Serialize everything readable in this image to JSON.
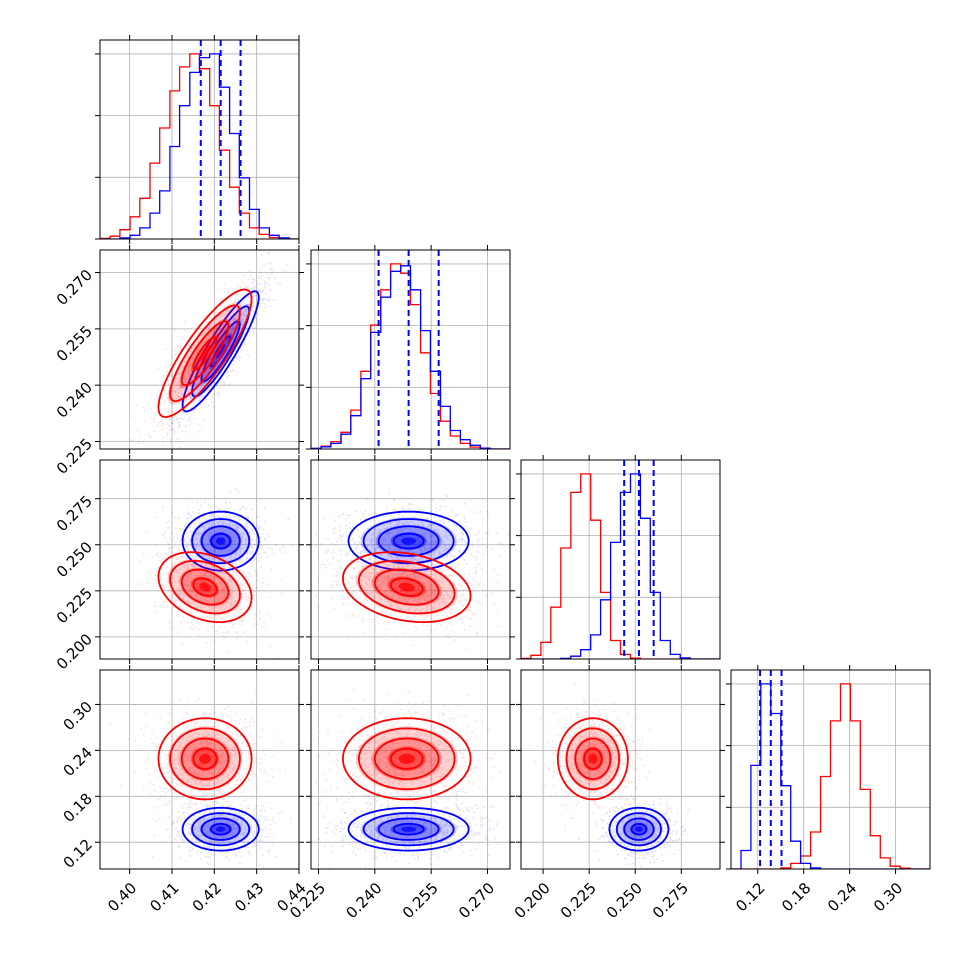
{
  "chart_data": {
    "type": "corner",
    "grid": true,
    "params": [
      {
        "index": 0,
        "range": [
          0.393,
          0.44
        ],
        "ticks": [
          "0.40",
          "0.41",
          "0.42",
          "0.43",
          "0.44"
        ],
        "label": ""
      },
      {
        "index": 1,
        "range": [
          0.223,
          0.276
        ],
        "ticks": [
          "0.225",
          "0.240",
          "0.255",
          "0.270"
        ],
        "label": ""
      },
      {
        "index": 2,
        "range": [
          0.188,
          0.296
        ],
        "ticks": [
          "0.200",
          "0.225",
          "0.250",
          "0.275"
        ],
        "label": ""
      },
      {
        "index": 3,
        "range": [
          0.085,
          0.345
        ],
        "ticks": [
          "0.12",
          "0.18",
          "0.24",
          "0.30"
        ],
        "label": ""
      }
    ],
    "series": [
      {
        "color": "#ff0000",
        "mean": [
          0.4178,
          0.2485,
          0.227,
          0.229
        ],
        "sd": [
          0.0055,
          0.0085,
          0.0095,
          0.0265
        ],
        "corr": {
          "0-1": 0.85,
          "0-2": -0.3,
          "1-2": -0.25
        }
      },
      {
        "color": "#0000ff",
        "mean": [
          0.4215,
          0.249,
          0.252,
          0.137
        ],
        "sd": [
          0.0045,
          0.008,
          0.008,
          0.014
        ],
        "corr": {
          "0-1": 0.9,
          "0-2": 0.0
        }
      }
    ],
    "quantile_lines": {
      "color": "#0000ff",
      "style": "dashed",
      "values": [
        [
          0.4168,
          0.4215,
          0.4262
        ],
        [
          0.241,
          0.249,
          0.257
        ],
        [
          0.244,
          0.252,
          0.26
        ],
        [
          0.123,
          0.137,
          0.151
        ]
      ]
    },
    "histograms": [
      {
        "param": 0,
        "bins": [
          0.393,
          0.3954,
          0.3977,
          0.4001,
          0.4024,
          0.4048,
          0.4071,
          0.4095,
          0.4118,
          0.4142,
          0.4165,
          0.4189,
          0.4212,
          0.4236,
          0.4259,
          0.4283,
          0.4306,
          0.433,
          0.4353,
          0.4377,
          0.44
        ],
        "red": [
          0.3,
          1.5,
          5,
          12,
          22,
          41,
          60,
          80,
          93,
          100,
          92,
          72,
          48,
          28,
          14,
          6,
          2.5,
          0.8,
          0.3,
          0
        ],
        "blue": [
          0,
          0,
          0.6,
          2,
          6,
          14,
          26,
          50,
          72,
          90,
          98,
          100,
          82,
          57,
          33,
          16,
          6,
          2,
          0.6,
          0
        ]
      },
      {
        "param": 1,
        "bins": [
          0.223,
          0.2257,
          0.2283,
          0.231,
          0.2336,
          0.2363,
          0.2389,
          0.2416,
          0.2442,
          0.2469,
          0.2495,
          0.2522,
          0.2548,
          0.2575,
          0.2601,
          0.2628,
          0.2654,
          0.2681,
          0.2707,
          0.2734,
          0.276
        ],
        "red": [
          0.3,
          1.5,
          4,
          9,
          21,
          42,
          67,
          86,
          100,
          95,
          78,
          52,
          30,
          15,
          7,
          3,
          1,
          0.3,
          0,
          0
        ],
        "blue": [
          0.3,
          1.2,
          3,
          8,
          18,
          38,
          63,
          82,
          96,
          99,
          86,
          64,
          42,
          23,
          10,
          5,
          2,
          0.5,
          0,
          0
        ]
      },
      {
        "param": 2,
        "bins": [
          0.188,
          0.1934,
          0.1988,
          0.2042,
          0.2096,
          0.215,
          0.2204,
          0.2258,
          0.2312,
          0.2366,
          0.242,
          0.2474,
          0.2528,
          0.2582,
          0.2636,
          0.269,
          0.2744,
          0.2798,
          0.2852,
          0.2906,
          0.296
        ],
        "red": [
          0.3,
          2,
          9,
          28,
          60,
          90,
          100,
          75,
          36,
          10,
          2.5,
          0.5,
          0,
          0,
          0,
          0,
          0,
          0,
          0,
          0
        ],
        "blue": [
          0,
          0,
          0,
          0,
          0.3,
          1.5,
          5,
          13,
          32,
          63,
          90,
          100,
          76,
          36,
          10,
          2.5,
          0.6,
          0,
          0,
          0
        ]
      },
      {
        "param": 3,
        "bins": [
          0.085,
          0.098,
          0.111,
          0.124,
          0.137,
          0.15,
          0.163,
          0.176,
          0.189,
          0.202,
          0.215,
          0.228,
          0.241,
          0.254,
          0.267,
          0.28,
          0.293,
          0.306,
          0.319,
          0.332,
          0.345
        ],
        "red": [
          0,
          0,
          0,
          0,
          0,
          0.6,
          3,
          7,
          20,
          50,
          80,
          100,
          80,
          43,
          18,
          6,
          1.5,
          0.5,
          0,
          0
        ],
        "blue": [
          0,
          10,
          56,
          100,
          84,
          45,
          15,
          3,
          0.6,
          0,
          0,
          0,
          0,
          0,
          0,
          0,
          0,
          0,
          0,
          0
        ]
      }
    ]
  }
}
